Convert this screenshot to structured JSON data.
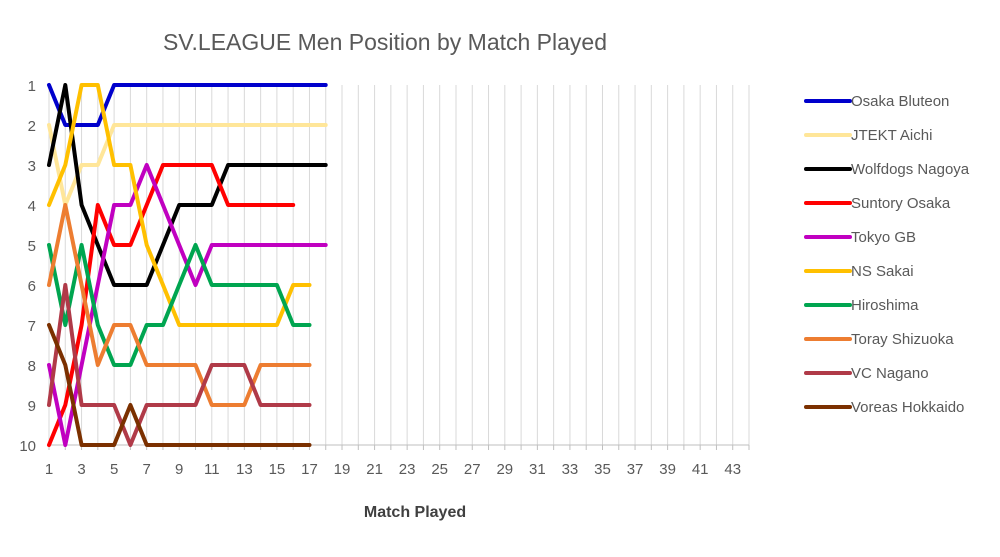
{
  "chart_data": {
    "type": "line",
    "title": "SV.LEAGUE Men Position by Match Played",
    "xlabel": "Match Played",
    "ylabel": "",
    "xlim": [
      1,
      44
    ],
    "ylim": [
      1,
      10
    ],
    "y_reversed": true,
    "x_ticks": [
      1,
      3,
      5,
      7,
      9,
      11,
      13,
      15,
      17,
      19,
      21,
      23,
      25,
      27,
      29,
      31,
      33,
      35,
      37,
      39,
      41,
      43
    ],
    "y_ticks": [
      1,
      2,
      3,
      4,
      5,
      6,
      7,
      8,
      9,
      10
    ],
    "grid": "vertical",
    "legend_position": "right",
    "series": [
      {
        "name": "Osaka Bluteon",
        "color": "#0000cc",
        "x": [
          1,
          2,
          3,
          4,
          5,
          6,
          7,
          8,
          9,
          10,
          11,
          12,
          13,
          14,
          15,
          16,
          17,
          18
        ],
        "values": [
          1,
          2,
          2,
          2,
          1,
          1,
          1,
          1,
          1,
          1,
          1,
          1,
          1,
          1,
          1,
          1,
          1,
          1
        ]
      },
      {
        "name": "JTEKT Aichi",
        "color": "#ffe699",
        "x": [
          1,
          2,
          3,
          4,
          5,
          6,
          7,
          8,
          9,
          10,
          11,
          12,
          13,
          14,
          15,
          16,
          17,
          18
        ],
        "values": [
          2,
          4,
          3,
          3,
          2,
          2,
          2,
          2,
          2,
          2,
          2,
          2,
          2,
          2,
          2,
          2,
          2,
          2
        ]
      },
      {
        "name": "Wolfdogs Nagoya",
        "color": "#000000",
        "x": [
          1,
          2,
          3,
          4,
          5,
          6,
          7,
          8,
          9,
          10,
          11,
          12,
          13,
          14,
          15,
          16,
          17,
          18
        ],
        "values": [
          3,
          1,
          4,
          5,
          6,
          6,
          6,
          5,
          4,
          4,
          4,
          3,
          3,
          3,
          3,
          3,
          3,
          3
        ]
      },
      {
        "name": "Suntory Osaka",
        "color": "#ff0000",
        "x": [
          1,
          2,
          3,
          4,
          5,
          6,
          7,
          8,
          9,
          10,
          11,
          12,
          13,
          14,
          15,
          16
        ],
        "values": [
          10,
          9,
          7,
          4,
          5,
          5,
          4,
          3,
          3,
          3,
          3,
          4,
          4,
          4,
          4,
          4
        ]
      },
      {
        "name": "Tokyo GB",
        "color": "#c000c0",
        "x": [
          1,
          2,
          3,
          4,
          5,
          6,
          7,
          8,
          9,
          10,
          11,
          12,
          13,
          14,
          15,
          16,
          17,
          18
        ],
        "values": [
          8,
          10,
          8,
          6,
          4,
          4,
          3,
          4,
          5,
          6,
          5,
          5,
          5,
          5,
          5,
          5,
          5,
          5
        ]
      },
      {
        "name": "NS Sakai",
        "color": "#ffc000",
        "x": [
          1,
          2,
          3,
          4,
          5,
          6,
          7,
          8,
          9,
          10,
          11,
          12,
          13,
          14,
          15,
          16,
          17
        ],
        "values": [
          4,
          3,
          1,
          1,
          3,
          3,
          5,
          6,
          7,
          7,
          7,
          7,
          7,
          7,
          7,
          6,
          6
        ]
      },
      {
        "name": "Hiroshima",
        "color": "#00a550",
        "x": [
          1,
          2,
          3,
          4,
          5,
          6,
          7,
          8,
          9,
          10,
          11,
          12,
          13,
          14,
          15,
          16,
          17
        ],
        "values": [
          5,
          7,
          5,
          7,
          8,
          8,
          7,
          7,
          6,
          5,
          6,
          6,
          6,
          6,
          6,
          7,
          7
        ]
      },
      {
        "name": "Toray Shizuoka",
        "color": "#ed7d31",
        "x": [
          1,
          2,
          3,
          4,
          5,
          6,
          7,
          8,
          9,
          10,
          11,
          12,
          13,
          14,
          15,
          16,
          17
        ],
        "values": [
          6,
          4,
          6,
          8,
          7,
          7,
          8,
          8,
          8,
          8,
          9,
          9,
          9,
          8,
          8,
          8,
          8
        ]
      },
      {
        "name": "VC Nagano",
        "color": "#b03a48",
        "x": [
          1,
          2,
          3,
          4,
          5,
          6,
          7,
          8,
          9,
          10,
          11,
          12,
          13,
          14,
          15,
          16,
          17
        ],
        "values": [
          9,
          6,
          9,
          9,
          9,
          10,
          9,
          9,
          9,
          9,
          8,
          8,
          8,
          9,
          9,
          9,
          9
        ]
      },
      {
        "name": "Voreas Hokkaido",
        "color": "#7b3000",
        "x": [
          1,
          2,
          3,
          4,
          5,
          6,
          7,
          8,
          9,
          10,
          11,
          12,
          13,
          14,
          15,
          16,
          17
        ],
        "values": [
          7,
          8,
          10,
          10,
          10,
          9,
          10,
          10,
          10,
          10,
          10,
          10,
          10,
          10,
          10,
          10,
          10
        ]
      }
    ]
  }
}
